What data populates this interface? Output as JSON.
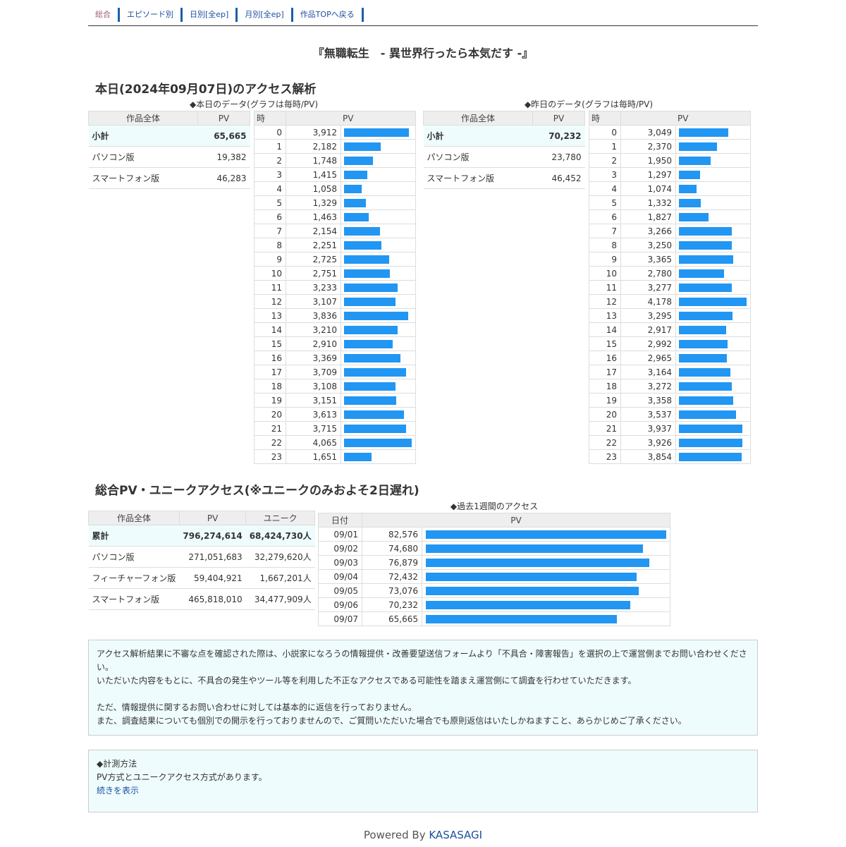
{
  "nav": [
    {
      "label": "総合",
      "current": true
    },
    {
      "label": "エピソード別"
    },
    {
      "label": "日別[全ep]"
    },
    {
      "label": "月別[全ep]"
    },
    {
      "label": "作品TOPへ戻る"
    }
  ],
  "title": "『無職転生　- 異世界行ったら本気だす -』",
  "today": {
    "heading": "本日(2024年09月07日)のアクセス解析",
    "caption": "◆本日のデータ(グラフは毎時/PV)",
    "summary_headers": [
      "作品全体",
      "PV"
    ],
    "summary": [
      {
        "label": "小計",
        "pv": "65,665"
      },
      {
        "label": "パソコン版",
        "pv": "19,382"
      },
      {
        "label": "スマートフォン版",
        "pv": "46,283"
      }
    ],
    "hourly_headers": [
      "時",
      "PV"
    ],
    "hourly": [
      3912,
      2182,
      1748,
      1415,
      1058,
      1329,
      1463,
      2154,
      2251,
      2725,
      2751,
      3233,
      3107,
      3836,
      3210,
      2910,
      3369,
      3709,
      3108,
      3151,
      3613,
      3715,
      4065,
      1651
    ]
  },
  "yesterday": {
    "caption": "◆昨日のデータ(グラフは毎時/PV)",
    "summary_headers": [
      "作品全体",
      "PV"
    ],
    "summary": [
      {
        "label": "小計",
        "pv": "70,232"
      },
      {
        "label": "パソコン版",
        "pv": "23,780"
      },
      {
        "label": "スマートフォン版",
        "pv": "46,452"
      }
    ],
    "hourly_headers": [
      "時",
      "PV"
    ],
    "hourly": [
      3049,
      2370,
      1950,
      1297,
      1074,
      1332,
      1827,
      3266,
      3250,
      3365,
      2780,
      3277,
      4178,
      3295,
      2917,
      2992,
      2965,
      3164,
      3272,
      3358,
      3537,
      3937,
      3926,
      3854
    ]
  },
  "total": {
    "heading": "総合PV・ユニークアクセス(※ユニークのみおよそ2日遅れ)",
    "headers": [
      "作品全体",
      "PV",
      "ユニーク"
    ],
    "rows": [
      {
        "label": "累計",
        "pv": "796,274,614",
        "unique": "68,424,730人"
      },
      {
        "label": "パソコン版",
        "pv": "271,051,683",
        "unique": "32,279,620人"
      },
      {
        "label": "フィーチャーフォン版",
        "pv": "59,404,921",
        "unique": "1,667,201人"
      },
      {
        "label": "スマートフォン版",
        "pv": "465,818,010",
        "unique": "34,477,909人"
      }
    ]
  },
  "weekly": {
    "caption": "◆過去1週間のアクセス",
    "headers": [
      "日付",
      "PV"
    ],
    "rows": [
      {
        "date": "09/01",
        "pv": 82576
      },
      {
        "date": "09/02",
        "pv": 74680
      },
      {
        "date": "09/03",
        "pv": 76879
      },
      {
        "date": "09/04",
        "pv": 72432
      },
      {
        "date": "09/05",
        "pv": 73076
      },
      {
        "date": "09/06",
        "pv": 70232
      },
      {
        "date": "09/07",
        "pv": 65665
      }
    ]
  },
  "notice": {
    "lines": [
      "アクセス解析結果に不審な点を確認された際は、小説家になろうの情報提供・改善要望送信フォームより「不具合・障害報告」を選択の上で運営側までお問い合わせください。",
      "いただいた内容をもとに、不具合の発生やツール等を利用した不正なアクセスである可能性を踏まえ運営側にて調査を行わせていただきます。",
      "",
      "ただ、情報提供に関するお問い合わせに対しては基本的に返信を行っておりません。",
      "また、調査結果についても個別での開示を行っておりませんので、ご質問いただいた場合でも原則返信はいたしかねますこと、あらかじめご了承ください。"
    ]
  },
  "method": {
    "title": "◆計測方法",
    "text": "PV方式とユニークアクセス方式があります。",
    "link": "続きを表示"
  },
  "footer": {
    "prefix": "Powered By ",
    "brand": "KASASAGI"
  },
  "colors": {
    "bar": "#2196f3",
    "highlight": "#eefcfd",
    "link": "#1b4fa0"
  }
}
